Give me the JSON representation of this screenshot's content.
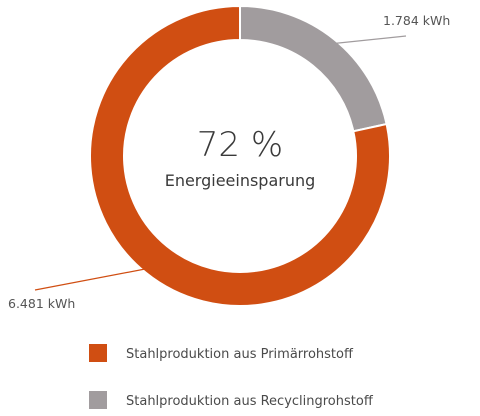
{
  "chart_data": {
    "type": "pie",
    "donut": true,
    "center_value": "72 %",
    "center_label": "Energieeinsparung",
    "series": [
      {
        "name": "Stahlproduktion aus Primärrohstoff",
        "value": 6481,
        "value_label": "6.481 kWh",
        "color": "#d04e12"
      },
      {
        "name": "Stahlproduktion aus Recyclingrohstoff",
        "value": 1784,
        "value_label": "1.784 kWh",
        "color": "#a19c9e"
      }
    ],
    "legend_position": "bottom-left"
  }
}
